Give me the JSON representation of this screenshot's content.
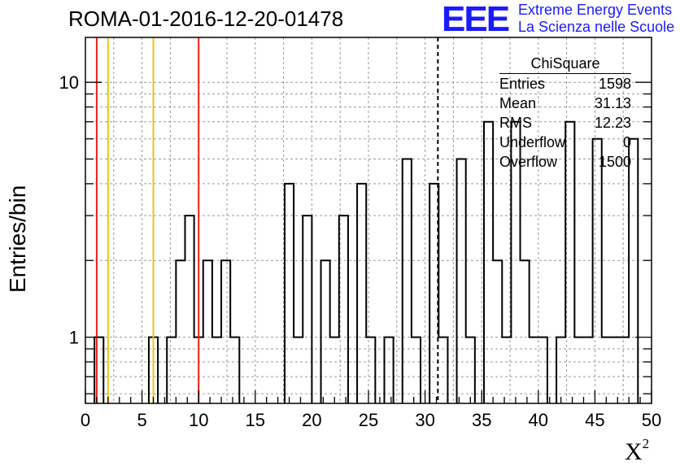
{
  "header": {
    "title": "ROMA-01-2016-12-20-01478",
    "logo_letters": "EEE",
    "logo_line1": "Extreme Energy Events",
    "logo_line2": "La Scienza nelle Scuole",
    "logo_color": "#1a1aff"
  },
  "stats_box": {
    "title": "ChiSquare",
    "rows": [
      {
        "label": "Entries",
        "value": "1598"
      },
      {
        "label": "Mean",
        "value": "31.13"
      },
      {
        "label": "RMS",
        "value": "12.23"
      },
      {
        "label": "Underflow",
        "value": "0"
      },
      {
        "label": "Overflow",
        "value": "1500"
      }
    ]
  },
  "chart_data": {
    "type": "bar",
    "histogram_style": "step",
    "xlabel": "X",
    "xlabel_superscript": "2",
    "ylabel": "Entries/bin",
    "xlim": [
      0,
      50
    ],
    "ylim": [
      0.55,
      15
    ],
    "y_scale": "log",
    "grid": true,
    "bin_width": 0.8,
    "x_ticks": [
      0,
      5,
      10,
      15,
      20,
      25,
      30,
      35,
      40,
      45,
      50
    ],
    "y_ticks": [
      1,
      10
    ],
    "bins": [
      {
        "x": 0.8,
        "value": 1
      },
      {
        "x": 5.6,
        "value": 1
      },
      {
        "x": 7.2,
        "value": 1
      },
      {
        "x": 8.0,
        "value": 2
      },
      {
        "x": 8.8,
        "value": 3
      },
      {
        "x": 9.6,
        "value": 1
      },
      {
        "x": 10.4,
        "value": 2
      },
      {
        "x": 11.2,
        "value": 1
      },
      {
        "x": 12.0,
        "value": 2
      },
      {
        "x": 12.8,
        "value": 1
      },
      {
        "x": 17.6,
        "value": 4
      },
      {
        "x": 18.4,
        "value": 1
      },
      {
        "x": 19.2,
        "value": 3
      },
      {
        "x": 20.8,
        "value": 2
      },
      {
        "x": 21.6,
        "value": 1
      },
      {
        "x": 22.4,
        "value": 3
      },
      {
        "x": 24.0,
        "value": 4
      },
      {
        "x": 24.8,
        "value": 1
      },
      {
        "x": 26.4,
        "value": 1
      },
      {
        "x": 28.0,
        "value": 5
      },
      {
        "x": 28.8,
        "value": 1
      },
      {
        "x": 30.4,
        "value": 4
      },
      {
        "x": 31.2,
        "value": 1
      },
      {
        "x": 32.8,
        "value": 5
      },
      {
        "x": 33.6,
        "value": 1
      },
      {
        "x": 35.2,
        "value": 7
      },
      {
        "x": 36.0,
        "value": 2
      },
      {
        "x": 36.8,
        "value": 1
      },
      {
        "x": 37.6,
        "value": 7
      },
      {
        "x": 38.4,
        "value": 2
      },
      {
        "x": 39.2,
        "value": 1
      },
      {
        "x": 40.0,
        "value": 1
      },
      {
        "x": 41.6,
        "value": 1
      },
      {
        "x": 42.4,
        "value": 7
      },
      {
        "x": 43.2,
        "value": 1
      },
      {
        "x": 44.0,
        "value": 1
      },
      {
        "x": 44.8,
        "value": 6
      },
      {
        "x": 45.6,
        "value": 1
      },
      {
        "x": 46.4,
        "value": 1
      },
      {
        "x": 47.2,
        "value": 1
      },
      {
        "x": 48.0,
        "value": 6
      }
    ],
    "vertical_lines": [
      {
        "x": 1,
        "color": "#e8231c",
        "style": "solid"
      },
      {
        "x": 2,
        "color": "#f2c218",
        "style": "solid"
      },
      {
        "x": 6,
        "color": "#f2c218",
        "style": "solid"
      },
      {
        "x": 10,
        "color": "#e8231c",
        "style": "solid"
      },
      {
        "x": 31.13,
        "color": "#000000",
        "style": "dashed"
      }
    ]
  }
}
